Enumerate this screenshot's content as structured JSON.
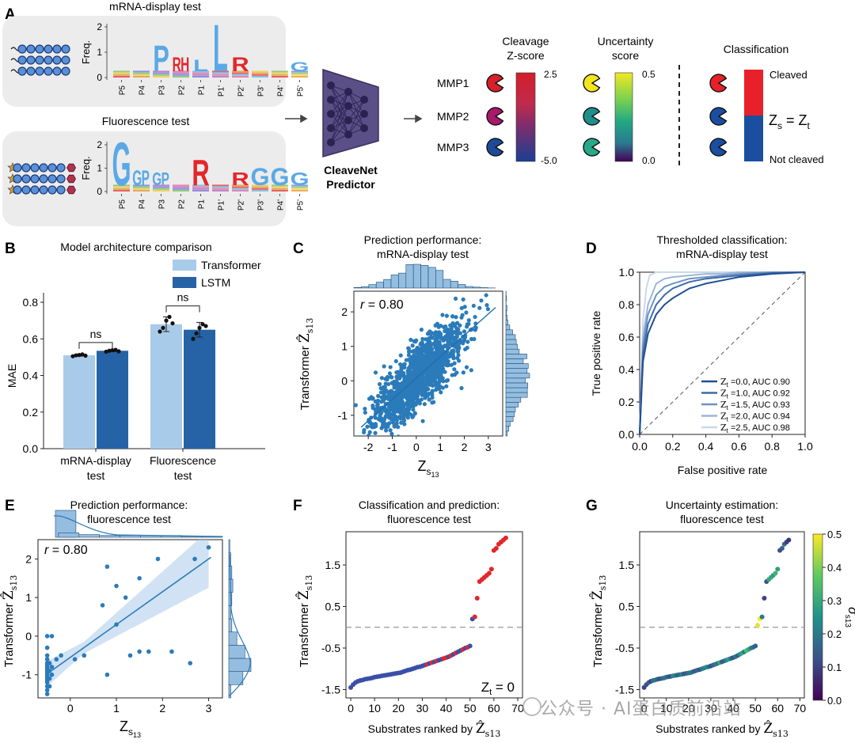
{
  "panelA": {
    "letter": "A",
    "mrna_title": "mRNA-display test",
    "fluor_title": "Fluorescence test",
    "freq_label": "Freq.",
    "logo_yticks": [
      "2",
      "1",
      "0"
    ],
    "positions": [
      "P5",
      "P4",
      "P3",
      "P2",
      "P1",
      "P1'",
      "P2'",
      "P3'",
      "P4'",
      "P5'"
    ],
    "mrna_logo": [
      {
        "top": "",
        "h": 0.2
      },
      {
        "top": "",
        "h": 0.25
      },
      {
        "top": "P",
        "h": 1.1
      },
      {
        "top": "RH",
        "h": 0.6
      },
      {
        "top": "L",
        "h": 0.5
      },
      {
        "top": "L",
        "h": 2.0
      },
      {
        "top": "R",
        "h": 0.6
      },
      {
        "top": "",
        "h": 0.35
      },
      {
        "top": "",
        "h": 0.3
      },
      {
        "top": "G",
        "h": 0.4
      }
    ],
    "fluor_logo": [
      {
        "top": "G",
        "h": 2.0
      },
      {
        "top": "GP",
        "h": 0.7
      },
      {
        "top": "GP",
        "h": 0.6
      },
      {
        "top": "",
        "h": 0.3
      },
      {
        "top": "R",
        "h": 1.2
      },
      {
        "top": "",
        "h": 0.3
      },
      {
        "top": "R",
        "h": 0.6
      },
      {
        "top": "G",
        "h": 0.8
      },
      {
        "top": "G",
        "h": 0.8
      },
      {
        "top": "G",
        "h": 0.6
      }
    ],
    "predictor_label": "CleaveNet Predictor",
    "predictor_line1": "CleaveNet",
    "predictor_line2": "Predictor",
    "cleavage_title1": "Cleavage",
    "cleavage_title2": "Z-score",
    "cleavage_max": "2.5",
    "cleavage_min": "-5.0",
    "uncert_title1": "Uncertainty",
    "uncert_title2": "score",
    "uncert_max": "0.5",
    "uncert_min": "0.0",
    "class_title": "Classification",
    "cleaved": "Cleaved",
    "not_cleaved": "Not cleaved",
    "zs_eq": "Z",
    "zs_sub": "s",
    "zt_eq": " = Z",
    "zt_sub": "t",
    "mmps": [
      "MMP1",
      "MMP2",
      "MMP3"
    ],
    "mmp_cleavage_colors": [
      "#d7202a",
      "#a8196b",
      "#1e4a9a"
    ],
    "mmp_uncert_colors": [
      "#f4e61e",
      "#1f8f8c",
      "#28a98a"
    ],
    "mmp_class_colors": [
      "#e8202a",
      "#1a4fa0",
      "#1a4fa0"
    ],
    "colors": {
      "transformer": "#a9cbea",
      "lstm": "#2563a6",
      "scatter": "#2b7bba",
      "red": "#e3262b",
      "blue": "#3a4fa8",
      "panel_bg": "#ececec",
      "predictor": "#5a4f86"
    }
  },
  "panelB": {
    "letter": "B",
    "title": "Model architecture comparison",
    "legend": [
      "Transformer",
      "LSTM"
    ],
    "ylabel": "MAE",
    "yticks": [
      "0.0",
      "0.2",
      "0.4",
      "0.6",
      "0.8"
    ],
    "ns": "ns",
    "chart_data": {
      "type": "bar",
      "categories": [
        "mRNA-display test",
        "Fluorescence test"
      ],
      "category_lines": [
        [
          "mRNA-display",
          "test"
        ],
        [
          "Fluorescence",
          "test"
        ]
      ],
      "series": [
        {
          "name": "Transformer",
          "values": [
            0.51,
            0.68
          ],
          "points": [
            [
              0.505,
              0.51,
              0.512,
              0.515,
              0.508
            ],
            [
              0.64,
              0.66,
              0.7,
              0.72,
              0.685
            ]
          ]
        },
        {
          "name": "LSTM",
          "values": [
            0.535,
            0.65
          ],
          "points": [
            [
              0.53,
              0.535,
              0.538,
              0.54,
              0.532
            ],
            [
              0.6,
              0.63,
              0.66,
              0.68,
              0.67
            ]
          ]
        }
      ],
      "ylim": [
        0,
        0.85
      ],
      "title": "Model architecture comparison",
      "ylabel": "MAE"
    }
  },
  "panelC": {
    "letter": "C",
    "title1": "Prediction performance:",
    "title2": "mRNA-display test",
    "r_label": "r",
    "r_value": " = 0.80",
    "ylabel": "Transformer ",
    "xlabel": "Z",
    "xsub": "s",
    "xsubsub": "13",
    "xticks": [
      "-2",
      "-1",
      "0",
      "1",
      "2",
      "3"
    ],
    "yticks": [
      "-1",
      "0",
      "1",
      "2"
    ],
    "chart_data": {
      "type": "scatter",
      "x_range": [
        -2.6,
        3.6
      ],
      "y_range": [
        -1.6,
        2.6
      ],
      "fit": {
        "slope": 0.62,
        "intercept": 0.08
      },
      "n_points": 1400,
      "correlation": 0.8,
      "xlabel": "Z_s13",
      "ylabel": "Transformer Ẑ_s13"
    }
  },
  "panelD": {
    "letter": "D",
    "title1": "Thresholded classification:",
    "title2": "mRNA-display test",
    "xlabel": "False positive rate",
    "ylabel": "True positive rate",
    "xticks": [
      "0.0",
      "0.2",
      "0.4",
      "0.6",
      "0.8",
      "1.0"
    ],
    "yticks": [
      "0.0",
      "0.2",
      "0.4",
      "0.6",
      "0.8",
      "1.0"
    ],
    "legend": [
      {
        "label": "Z",
        "sub": "t",
        "rest": " =0.0, AUC 0.90",
        "color": "#1f4e96"
      },
      {
        "label": "Z",
        "sub": "t",
        "rest": " =1.0, AUC 0.92",
        "color": "#3d6ba8"
      },
      {
        "label": "Z",
        "sub": "t",
        "rest": " =1.5, AUC 0.93",
        "color": "#6e93c2"
      },
      {
        "label": "Z",
        "sub": "t",
        "rest": " =2.0, AUC 0.94",
        "color": "#9cb5d8"
      },
      {
        "label": "Z",
        "sub": "t",
        "rest": " =2.5, AUC 0.98",
        "color": "#cbd8ec"
      }
    ],
    "chart_data": {
      "type": "line",
      "series": [
        {
          "name": "Zt=0.0",
          "auc": 0.9,
          "x": [
            0,
            0.02,
            0.05,
            0.1,
            0.15,
            0.2,
            0.3,
            0.4,
            0.5,
            0.6,
            0.8,
            1.0
          ],
          "y": [
            0,
            0.45,
            0.62,
            0.74,
            0.8,
            0.84,
            0.9,
            0.93,
            0.95,
            0.97,
            0.99,
            1.0
          ]
        },
        {
          "name": "Zt=1.0",
          "auc": 0.92,
          "x": [
            0,
            0.02,
            0.05,
            0.1,
            0.15,
            0.2,
            0.3,
            0.4,
            0.5,
            0.6,
            0.8,
            1.0
          ],
          "y": [
            0,
            0.5,
            0.68,
            0.8,
            0.86,
            0.9,
            0.94,
            0.96,
            0.97,
            0.98,
            0.995,
            1.0
          ]
        },
        {
          "name": "Zt=1.5",
          "auc": 0.93,
          "x": [
            0,
            0.02,
            0.05,
            0.1,
            0.15,
            0.2,
            0.3,
            0.4,
            0.5,
            0.6,
            0.8,
            1.0
          ],
          "y": [
            0,
            0.55,
            0.74,
            0.86,
            0.91,
            0.93,
            0.96,
            0.97,
            0.98,
            0.99,
            1.0,
            1.0
          ]
        },
        {
          "name": "Zt=2.0",
          "auc": 0.94,
          "x": [
            0,
            0.02,
            0.05,
            0.1,
            0.15,
            0.2,
            0.3,
            0.4,
            0.5,
            0.6,
            0.8,
            1.0
          ],
          "y": [
            0,
            0.6,
            0.8,
            0.93,
            0.96,
            0.97,
            0.98,
            0.99,
            0.99,
            1.0,
            1.0,
            1.0
          ]
        },
        {
          "name": "Zt=2.5",
          "auc": 0.98,
          "x": [
            0,
            0.02,
            0.04,
            0.06,
            0.1,
            0.2,
            0.3,
            0.5,
            0.8,
            1.0
          ],
          "y": [
            0,
            0.7,
            0.9,
            0.98,
            1.0,
            1.0,
            1.0,
            1.0,
            1.0,
            1.0
          ]
        }
      ],
      "xlim": [
        0,
        1
      ],
      "ylim": [
        0,
        1
      ],
      "xlabel": "False positive rate",
      "ylabel": "True positive rate",
      "diagonal": true
    }
  },
  "panelE": {
    "letter": "E",
    "title1": "Prediction performance:",
    "title2": "fluorescence test",
    "r_label": "r",
    "r_value": " = 0.80",
    "ylabel": "Transformer ",
    "xlabel": "Z",
    "xticks": [
      "0",
      "1",
      "2",
      "3"
    ],
    "yticks": [
      "-1",
      "0",
      "1",
      "2"
    ],
    "chart_data": {
      "type": "scatter",
      "x_range": [
        -0.7,
        3.3
      ],
      "y_range": [
        -1.6,
        2.5
      ],
      "fit": {
        "slope": 0.85,
        "intercept": -0.55
      },
      "points": [
        [
          -0.5,
          -1.5
        ],
        [
          -0.5,
          -1.4
        ],
        [
          -0.5,
          -1.3
        ],
        [
          -0.5,
          -1.2
        ],
        [
          -0.5,
          -1.15
        ],
        [
          -0.5,
          -1.1
        ],
        [
          -0.5,
          -1.05
        ],
        [
          -0.5,
          -1.0
        ],
        [
          -0.5,
          -0.95
        ],
        [
          -0.5,
          -0.9
        ],
        [
          -0.5,
          -0.85
        ],
        [
          -0.5,
          -0.8
        ],
        [
          -0.5,
          -0.75
        ],
        [
          -0.5,
          -0.7
        ],
        [
          -0.5,
          -0.6
        ],
        [
          -0.5,
          -0.5
        ],
        [
          -0.5,
          -0.3
        ],
        [
          -0.5,
          0.0
        ],
        [
          -0.45,
          -1.3
        ],
        [
          -0.45,
          -1.1
        ],
        [
          -0.45,
          -0.9
        ],
        [
          -0.45,
          -0.7
        ],
        [
          -0.4,
          -1.0
        ],
        [
          -0.4,
          -0.8
        ],
        [
          -0.4,
          0.0
        ],
        [
          -0.3,
          -0.6
        ],
        [
          -0.2,
          -0.5
        ],
        [
          0.1,
          -0.6
        ],
        [
          0.3,
          -0.5
        ],
        [
          0.7,
          0.8
        ],
        [
          0.8,
          -1.0
        ],
        [
          0.8,
          1.8
        ],
        [
          1.0,
          0.3
        ],
        [
          1.0,
          1.3
        ],
        [
          1.2,
          1.0
        ],
        [
          1.3,
          -0.5
        ],
        [
          1.5,
          1.5
        ],
        [
          1.5,
          -0.4
        ],
        [
          1.7,
          -0.4
        ],
        [
          1.9,
          2.0
        ],
        [
          2.2,
          -0.4
        ],
        [
          2.6,
          -0.7
        ],
        [
          2.7,
          2.0
        ],
        [
          3.0,
          2.3
        ]
      ],
      "xlabel": "Z_s13",
      "ylabel": "Transformer Ẑ_s13"
    }
  },
  "panelF": {
    "letter": "F",
    "title1": "Classification and prediction:",
    "title2": "fluorescence test",
    "ylabel": "Transformer ",
    "xlabel": "Substrates ranked by ",
    "xticks": [
      "0",
      "10",
      "20",
      "30",
      "40",
      "50",
      "60",
      "70"
    ],
    "yticks": [
      "1.5",
      "0.5",
      "-0.5",
      "-1.5"
    ],
    "zt_label": "Z",
    "zt_sub": "t",
    "zt_rest": " = 0",
    "chart_data": {
      "type": "scatter",
      "x_range": [
        -2,
        72
      ],
      "y_range": [
        -1.7,
        2.3
      ],
      "threshold": 0,
      "values": [
        -1.45,
        -1.38,
        -1.33,
        -1.3,
        -1.28,
        -1.27,
        -1.25,
        -1.24,
        -1.23,
        -1.22,
        -1.2,
        -1.19,
        -1.18,
        -1.17,
        -1.16,
        -1.15,
        -1.14,
        -1.13,
        -1.12,
        -1.11,
        -1.1,
        -1.09,
        -1.07,
        -1.05,
        -1.03,
        -1.02,
        -1.0,
        -0.98,
        -0.96,
        -0.95,
        -0.93,
        -0.91,
        -0.89,
        -0.87,
        -0.85,
        -0.83,
        -0.81,
        -0.79,
        -0.77,
        -0.75,
        -0.73,
        -0.71,
        -0.68,
        -0.65,
        -0.62,
        -0.59,
        -0.56,
        -0.53,
        -0.5,
        -0.48,
        -0.45,
        0.2,
        0.25,
        0.7,
        1.1,
        1.15,
        1.2,
        1.25,
        1.3,
        1.4,
        1.85,
        1.9,
        2.0,
        2.05,
        2.1,
        2.15
      ],
      "red_indices": [
        32,
        34,
        36,
        39,
        40,
        42,
        44,
        47,
        49,
        52,
        53,
        54,
        55,
        56,
        57,
        58,
        59,
        60,
        61,
        62,
        63,
        64,
        65
      ]
    }
  },
  "panelG": {
    "letter": "G",
    "title1": "Uncertainty estimation:",
    "title2": "fluorescence test",
    "ylabel": "Transformer ",
    "xlabel": "Substrates ranked by ",
    "xticks": [
      "0",
      "10",
      "20",
      "30",
      "40",
      "50",
      "60",
      "70"
    ],
    "yticks": [
      "1.5",
      "0.5",
      "-0.5",
      "-1.5"
    ],
    "cbar_ticks": [
      "0.5",
      "0.4",
      "0.3",
      "0.2",
      "0.1",
      "0.0"
    ],
    "cbar_label": "σ",
    "chart_data": {
      "type": "scatter",
      "x_range": [
        -2,
        72
      ],
      "y_range": [
        -1.7,
        2.3
      ],
      "threshold": 0,
      "values": [
        -1.45,
        -1.38,
        -1.33,
        -1.3,
        -1.28,
        -1.27,
        -1.25,
        -1.24,
        -1.23,
        -1.22,
        -1.2,
        -1.19,
        -1.18,
        -1.17,
        -1.16,
        -1.15,
        -1.14,
        -1.13,
        -1.12,
        -1.11,
        -1.1,
        -1.09,
        -1.07,
        -1.05,
        -1.03,
        -1.02,
        -1.0,
        -0.98,
        -0.96,
        -0.95,
        -0.93,
        -0.91,
        -0.89,
        -0.87,
        -0.85,
        -0.83,
        -0.81,
        -0.79,
        -0.77,
        -0.75,
        -0.73,
        -0.71,
        -0.68,
        -0.65,
        -0.62,
        -0.59,
        -0.56,
        -0.53,
        -0.5,
        -0.48,
        -0.45,
        0.05,
        0.2,
        0.25,
        0.7,
        1.1,
        1.15,
        1.2,
        1.25,
        1.3,
        1.4,
        1.85,
        1.9,
        2.0,
        2.05,
        2.1
      ],
      "uncertainty": [
        0.1,
        0.12,
        0.15,
        0.1,
        0.18,
        0.2,
        0.15,
        0.12,
        0.16,
        0.2,
        0.18,
        0.14,
        0.12,
        0.25,
        0.2,
        0.15,
        0.18,
        0.22,
        0.12,
        0.15,
        0.18,
        0.2,
        0.16,
        0.14,
        0.18,
        0.12,
        0.2,
        0.22,
        0.25,
        0.18,
        0.12,
        0.15,
        0.2,
        0.18,
        0.3,
        0.14,
        0.16,
        0.22,
        0.28,
        0.18,
        0.12,
        0.2,
        0.15,
        0.25,
        0.3,
        0.2,
        0.35,
        0.3,
        0.22,
        0.18,
        0.15,
        0.48,
        0.5,
        0.2,
        0.1,
        0.12,
        0.3,
        0.3,
        0.28,
        0.32,
        0.28,
        0.12,
        0.15,
        0.18,
        0.1,
        0.08
      ],
      "clim": [
        0,
        0.5
      ]
    }
  },
  "watermark": "公众号 · AI蛋白质前沿站"
}
